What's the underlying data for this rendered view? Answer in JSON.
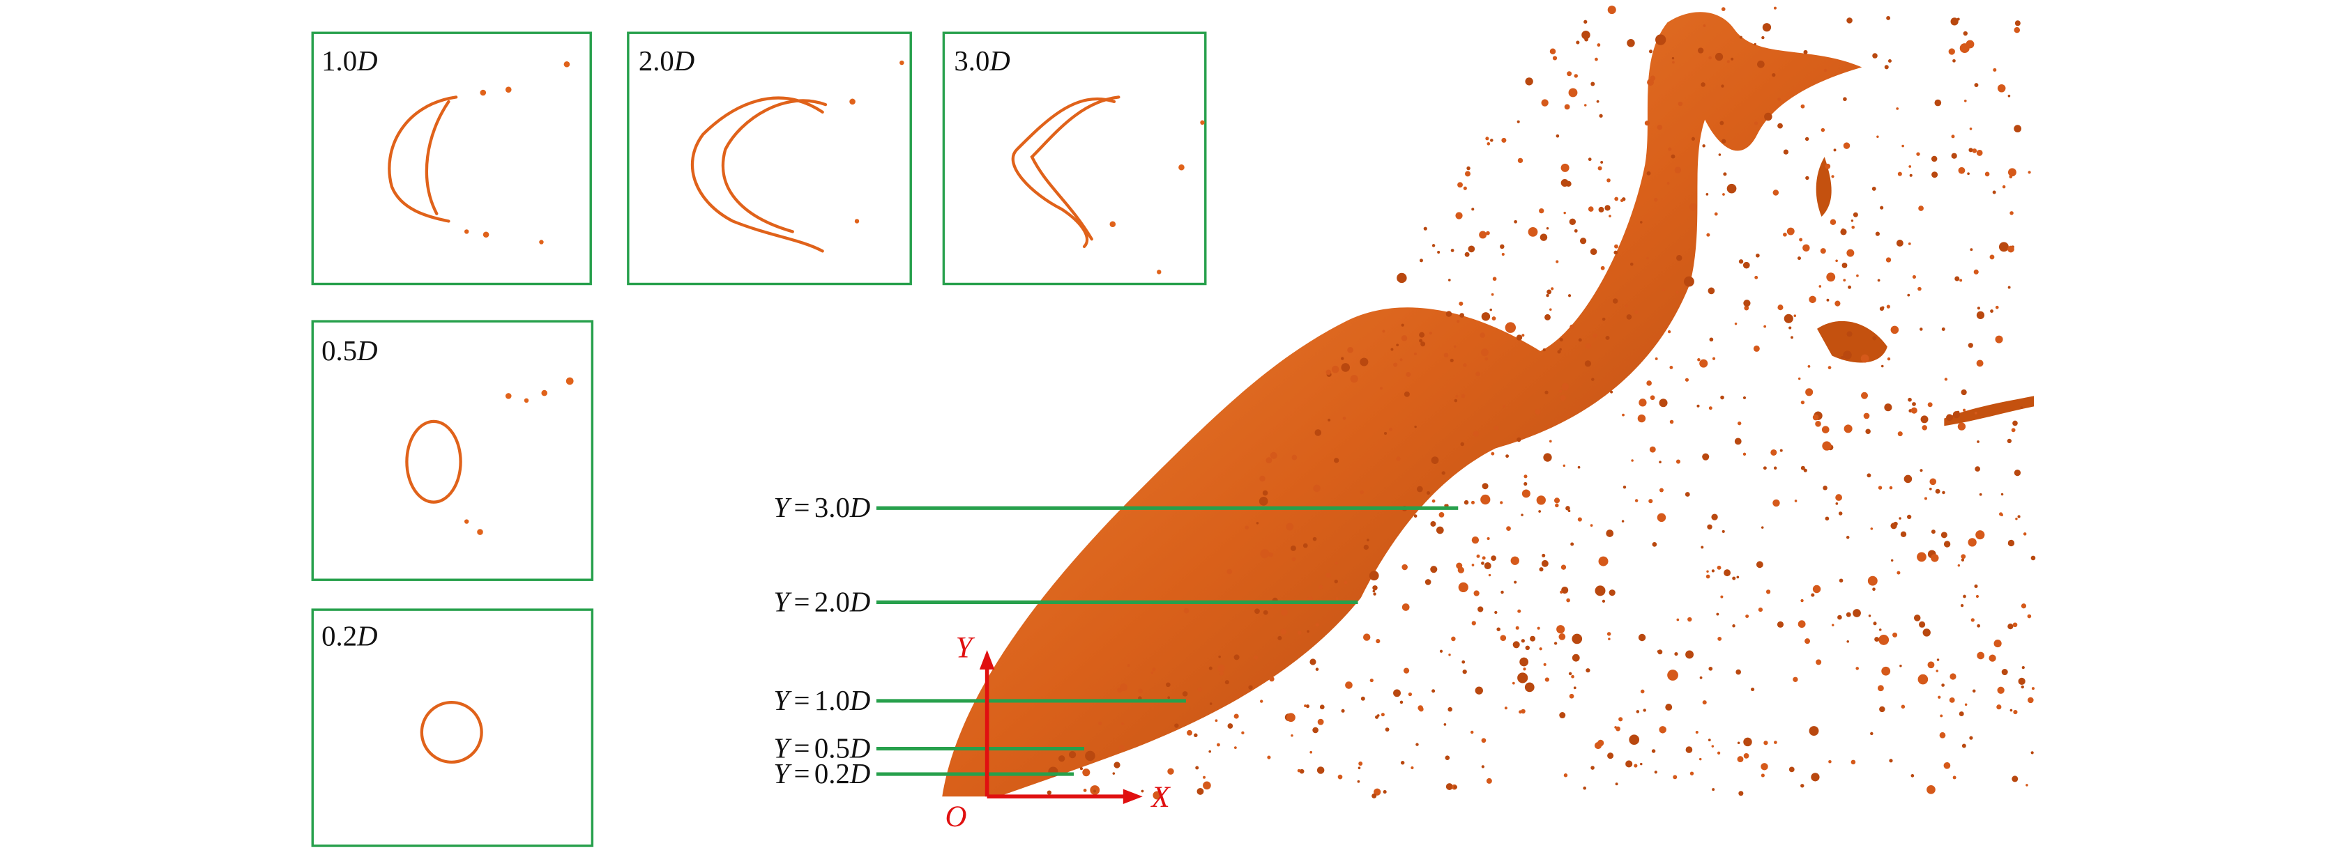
{
  "panels": [
    {
      "value": "1.0",
      "unit": "D"
    },
    {
      "value": "2.0",
      "unit": "D"
    },
    {
      "value": "3.0",
      "unit": "D"
    },
    {
      "value": "0.5",
      "unit": "D"
    },
    {
      "value": "0.2",
      "unit": "D"
    }
  ],
  "sections": [
    {
      "variable": "Y",
      "relation": "=",
      "value": "3.0",
      "unit": "D"
    },
    {
      "variable": "Y",
      "relation": "=",
      "value": "2.0",
      "unit": "D"
    },
    {
      "variable": "Y",
      "relation": "=",
      "value": "1.0",
      "unit": "D"
    },
    {
      "variable": "Y",
      "relation": "=",
      "value": "0.5",
      "unit": "D"
    },
    {
      "variable": "Y",
      "relation": "=",
      "value": "0.2",
      "unit": "D"
    }
  ],
  "axes": {
    "y": "Y",
    "x": "X",
    "origin": "O"
  }
}
